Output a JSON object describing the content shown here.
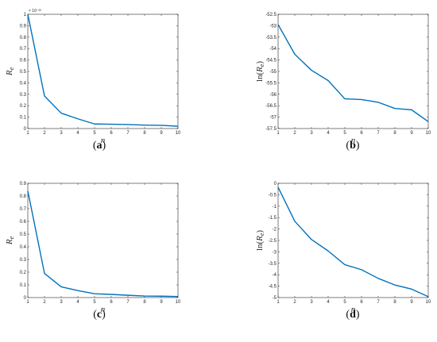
{
  "figure": {
    "line_color": "#0072BD",
    "axis_color": "#262626"
  },
  "chart_data": [
    {
      "type": "line",
      "panel": "(a)",
      "panel_letter": "a",
      "xlabel": "n",
      "ylabel": "R_e",
      "ylabel_main": "R",
      "ylabel_sub": "e",
      "log_label": false,
      "exponent_label": "× 10⁻²³",
      "x": [
        1,
        2,
        3,
        4,
        5,
        6,
        7,
        8,
        9,
        10
      ],
      "series": [
        {
          "values": [
            1.0,
            0.285,
            0.135,
            0.085,
            0.04,
            0.038,
            0.035,
            0.03,
            0.028,
            0.02
          ]
        }
      ],
      "xlim": [
        1,
        10
      ],
      "ylim": [
        0,
        1
      ],
      "xticks": [
        "1",
        "2",
        "3",
        "4",
        "5",
        "6",
        "7",
        "8",
        "9",
        "10"
      ],
      "yticks": [
        {
          "v": 0,
          "label": "0"
        },
        {
          "v": 0.1,
          "label": "0.1"
        },
        {
          "v": 0.2,
          "label": "0.2"
        },
        {
          "v": 0.3,
          "label": "0.3"
        },
        {
          "v": 0.4,
          "label": "0.4"
        },
        {
          "v": 0.5,
          "label": "0.5"
        },
        {
          "v": 0.6,
          "label": "0.6"
        },
        {
          "v": 0.7,
          "label": "0.7"
        },
        {
          "v": 0.8,
          "label": "0.8"
        },
        {
          "v": 0.9,
          "label": "0.9"
        },
        {
          "v": 1,
          "label": "1"
        }
      ],
      "grid": false
    },
    {
      "type": "line",
      "panel": "(b)",
      "panel_letter": "b",
      "xlabel": "n",
      "ylabel": "ln(R_e)",
      "ylabel_main": "R",
      "ylabel_sub": "e",
      "log_label": true,
      "exponent_label": "",
      "x": [
        1,
        2,
        3,
        4,
        5,
        6,
        7,
        8,
        9,
        10
      ],
      "series": [
        {
          "values": [
            -52.95,
            -54.25,
            -54.95,
            -55.4,
            -56.2,
            -56.23,
            -56.35,
            -56.62,
            -56.68,
            -57.2
          ]
        }
      ],
      "xlim": [
        1,
        10
      ],
      "ylim": [
        -57.5,
        -52.5
      ],
      "xticks": [
        "1",
        "2",
        "3",
        "4",
        "5",
        "6",
        "7",
        "8",
        "9",
        "10"
      ],
      "yticks": [
        {
          "v": -52.5,
          "label": "-52.5"
        },
        {
          "v": -53,
          "label": "-53"
        },
        {
          "v": -53.5,
          "label": "-53.5"
        },
        {
          "v": -54,
          "label": "-54"
        },
        {
          "v": -54.5,
          "label": "-54.5"
        },
        {
          "v": -55,
          "label": "-55"
        },
        {
          "v": -55.5,
          "label": "-55.5"
        },
        {
          "v": -56,
          "label": "-56"
        },
        {
          "v": -56.5,
          "label": "-56.5"
        },
        {
          "v": -57,
          "label": "-57"
        },
        {
          "v": -57.5,
          "label": "-57.5"
        }
      ],
      "grid": false
    },
    {
      "type": "line",
      "panel": "(c)",
      "panel_letter": "c",
      "xlabel": "n",
      "ylabel": "R_e",
      "ylabel_main": "R",
      "ylabel_sub": "e",
      "log_label": false,
      "exponent_label": "",
      "x": [
        1,
        2,
        3,
        4,
        5,
        6,
        7,
        8,
        9,
        10
      ],
      "series": [
        {
          "values": [
            0.84,
            0.19,
            0.085,
            0.055,
            0.03,
            0.025,
            0.018,
            0.012,
            0.011,
            0.008
          ]
        }
      ],
      "xlim": [
        1,
        10
      ],
      "ylim": [
        0,
        0.9
      ],
      "xticks": [
        "1",
        "2",
        "3",
        "4",
        "5",
        "6",
        "7",
        "8",
        "9",
        "10"
      ],
      "yticks": [
        {
          "v": 0,
          "label": "0"
        },
        {
          "v": 0.1,
          "label": "0.1"
        },
        {
          "v": 0.2,
          "label": "0.2"
        },
        {
          "v": 0.3,
          "label": "0.3"
        },
        {
          "v": 0.4,
          "label": "0.4"
        },
        {
          "v": 0.5,
          "label": "0.5"
        },
        {
          "v": 0.6,
          "label": "0.6"
        },
        {
          "v": 0.7,
          "label": "0.7"
        },
        {
          "v": 0.8,
          "label": "0.8"
        },
        {
          "v": 0.9,
          "label": "0.9"
        }
      ],
      "grid": false
    },
    {
      "type": "line",
      "panel": "(d)",
      "panel_letter": "d",
      "xlabel": "n",
      "ylabel": "ln(R_e)",
      "ylabel_main": "R",
      "ylabel_sub": "e",
      "log_label": true,
      "exponent_label": "",
      "x": [
        1,
        2,
        3,
        4,
        5,
        6,
        7,
        8,
        9,
        10
      ],
      "series": [
        {
          "values": [
            -0.17,
            -1.66,
            -2.46,
            -2.96,
            -3.56,
            -3.78,
            -4.16,
            -4.45,
            -4.63,
            -4.96
          ]
        }
      ],
      "xlim": [
        1,
        10
      ],
      "ylim": [
        -5,
        0
      ],
      "xticks": [
        "1",
        "2",
        "3",
        "4",
        "5",
        "6",
        "7",
        "8",
        "9",
        "10"
      ],
      "yticks": [
        {
          "v": 0,
          "label": "0"
        },
        {
          "v": -0.5,
          "label": "-0.5"
        },
        {
          "v": -1,
          "label": "-1"
        },
        {
          "v": -1.5,
          "label": "-1.5"
        },
        {
          "v": -2,
          "label": "-2"
        },
        {
          "v": -2.5,
          "label": "-2.5"
        },
        {
          "v": -3,
          "label": "-3"
        },
        {
          "v": -3.5,
          "label": "-3.5"
        },
        {
          "v": -4,
          "label": "-4"
        },
        {
          "v": -4.5,
          "label": "-4.5"
        },
        {
          "v": -5,
          "label": "-5"
        }
      ],
      "grid": false
    }
  ]
}
